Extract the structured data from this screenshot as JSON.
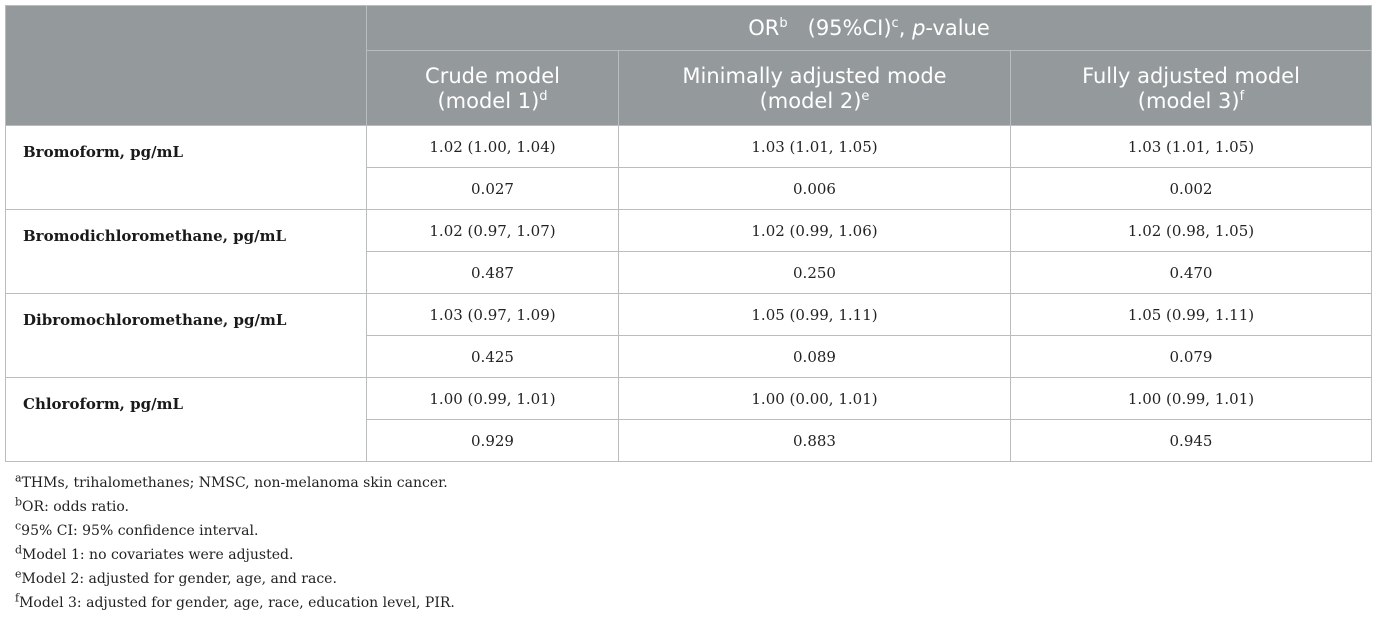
{
  "header": {
    "or_label": "OR",
    "or_sup": "b",
    "ci_label": "(95%CI)",
    "ci_sup": "c",
    "sep": ", ",
    "p_italic": "p",
    "p_rest": "-value",
    "models": [
      {
        "line1": "Crude model",
        "line2": "(model 1)",
        "sup": "d"
      },
      {
        "line1": "Minimally adjusted mode",
        "line2": "(model 2)",
        "sup": "e"
      },
      {
        "line1": "Fully adjusted model",
        "line2": "(model 3)",
        "sup": "f"
      }
    ]
  },
  "rows": [
    {
      "label": "Bromoform, pg/mL",
      "or": [
        "1.02 (1.00, 1.04)",
        "1.03 (1.01, 1.05)",
        "1.03 (1.01, 1.05)"
      ],
      "p": [
        "0.027",
        "0.006",
        "0.002"
      ]
    },
    {
      "label": "Bromodichloromethane, pg/mL",
      "or": [
        "1.02 (0.97, 1.07)",
        "1.02 (0.99, 1.06)",
        "1.02 (0.98, 1.05)"
      ],
      "p": [
        "0.487",
        "0.250",
        "0.470"
      ]
    },
    {
      "label": "Dibromochloromethane, pg/mL",
      "or": [
        "1.03 (0.97, 1.09)",
        "1.05 (0.99, 1.11)",
        "1.05 (0.99, 1.11)"
      ],
      "p": [
        "0.425",
        "0.089",
        "0.079"
      ]
    },
    {
      "label": "Chloroform, pg/mL",
      "or": [
        "1.00 (0.99, 1.01)",
        "1.00 (0.00, 1.01)",
        "1.00 (0.99, 1.01)"
      ],
      "p": [
        "0.929",
        "0.883",
        "0.945"
      ]
    }
  ],
  "footnotes": [
    {
      "sup": "a",
      "text": "THMs, trihalomethanes; NMSC, non-melanoma skin cancer."
    },
    {
      "sup": "b",
      "text": "OR: odds ratio."
    },
    {
      "sup": "c",
      "text": "95% CI: 95% confidence interval."
    },
    {
      "sup": "d",
      "text": "Model 1: no covariates were adjusted."
    },
    {
      "sup": "e",
      "text": "Model 2: adjusted for gender, age, and race."
    },
    {
      "sup": "f",
      "text": "Model 3: adjusted for gender, age, race, education level, PIR."
    }
  ]
}
